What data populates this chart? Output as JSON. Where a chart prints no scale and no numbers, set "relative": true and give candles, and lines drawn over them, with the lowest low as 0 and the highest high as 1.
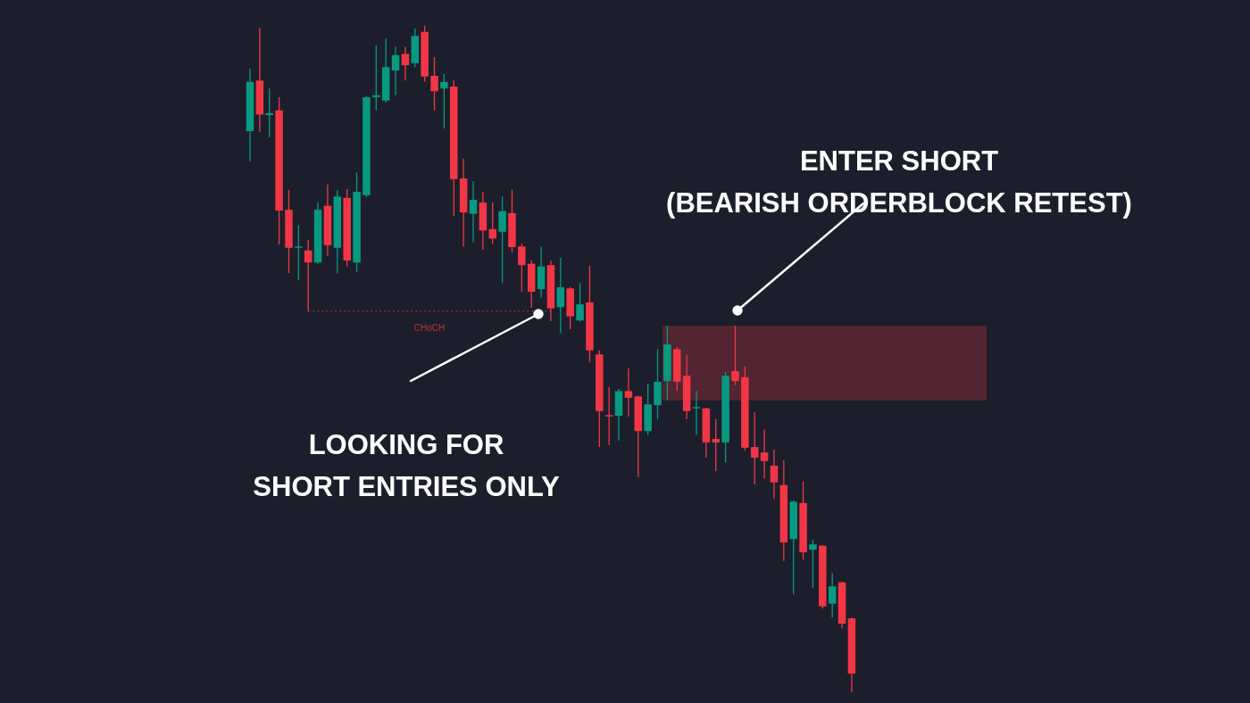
{
  "chart_data": {
    "type": "candlestick",
    "relative": true,
    "tick_labels": false,
    "categories": [
      null,
      null,
      null,
      null,
      null,
      null,
      null,
      null,
      null,
      null,
      null,
      null,
      null,
      null,
      null,
      null,
      null,
      null,
      null,
      null,
      null,
      null,
      null,
      null,
      null,
      null,
      null,
      null,
      null,
      null,
      null,
      null,
      null,
      null,
      null,
      null,
      null,
      null,
      null,
      null,
      null,
      null,
      null,
      null,
      null,
      null,
      null,
      null,
      null,
      null,
      null,
      null,
      null,
      null,
      null,
      null,
      null,
      null,
      null,
      null,
      null,
      null,
      null
    ],
    "ohlc": [
      [
        0.842,
        0.936,
        0.797,
        0.916
      ],
      [
        0.918,
        0.997,
        0.841,
        0.867
      ],
      [
        0.866,
        0.906,
        0.833,
        0.869
      ],
      [
        0.873,
        0.893,
        0.672,
        0.723
      ],
      [
        0.724,
        0.754,
        0.629,
        0.667
      ],
      [
        0.667,
        0.701,
        0.618,
        0.669
      ],
      [
        0.663,
        0.679,
        0.572,
        0.645
      ],
      [
        0.645,
        0.735,
        0.643,
        0.724
      ],
      [
        0.73,
        0.762,
        0.655,
        0.671
      ],
      [
        0.667,
        0.754,
        0.629,
        0.744
      ],
      [
        0.742,
        0.755,
        0.639,
        0.648
      ],
      [
        0.645,
        0.78,
        0.631,
        0.751
      ],
      [
        0.746,
        0.895,
        0.743,
        0.893
      ],
      [
        0.893,
        0.971,
        0.873,
        0.896
      ],
      [
        0.888,
        0.981,
        0.885,
        0.938
      ],
      [
        0.933,
        0.969,
        0.896,
        0.956
      ],
      [
        0.958,
        0.969,
        0.918,
        0.941
      ],
      [
        0.944,
        0.996,
        0.938,
        0.985
      ],
      [
        0.991,
        1.0,
        0.916,
        0.924
      ],
      [
        0.925,
        0.953,
        0.873,
        0.902
      ],
      [
        0.906,
        0.928,
        0.846,
        0.916
      ],
      [
        0.909,
        0.918,
        0.715,
        0.77
      ],
      [
        0.771,
        0.801,
        0.669,
        0.72
      ],
      [
        0.718,
        0.767,
        0.675,
        0.739
      ],
      [
        0.735,
        0.751,
        0.664,
        0.693
      ],
      [
        0.695,
        0.735,
        0.673,
        0.681
      ],
      [
        0.691,
        0.744,
        0.614,
        0.722
      ],
      [
        0.719,
        0.754,
        0.66,
        0.668
      ],
      [
        0.669,
        0.673,
        0.601,
        0.641
      ],
      [
        0.643,
        0.648,
        0.577,
        0.601
      ],
      [
        0.605,
        0.669,
        0.592,
        0.639
      ],
      [
        0.641,
        0.648,
        0.557,
        0.576
      ],
      [
        0.578,
        0.652,
        0.539,
        0.608
      ],
      [
        0.606,
        0.608,
        0.545,
        0.564
      ],
      [
        0.558,
        0.614,
        0.556,
        0.582
      ],
      [
        0.585,
        0.64,
        0.495,
        0.513
      ],
      [
        0.507,
        0.513,
        0.368,
        0.422
      ],
      [
        0.416,
        0.458,
        0.371,
        0.414
      ],
      [
        0.415,
        0.455,
        0.378,
        0.452
      ],
      [
        0.452,
        0.486,
        0.414,
        0.442
      ],
      [
        0.444,
        0.445,
        0.323,
        0.392
      ],
      [
        0.392,
        0.463,
        0.386,
        0.432
      ],
      [
        0.431,
        0.515,
        0.41,
        0.466
      ],
      [
        0.467,
        0.55,
        0.438,
        0.522
      ],
      [
        0.515,
        0.518,
        0.452,
        0.466
      ],
      [
        0.475,
        0.506,
        0.41,
        0.422
      ],
      [
        0.426,
        0.452,
        0.386,
        0.428
      ],
      [
        0.426,
        0.427,
        0.352,
        0.375
      ],
      [
        0.38,
        0.41,
        0.332,
        0.375
      ],
      [
        0.375,
        0.481,
        0.345,
        0.475
      ],
      [
        0.482,
        0.55,
        0.461,
        0.467
      ],
      [
        0.473,
        0.489,
        0.363,
        0.367
      ],
      [
        0.368,
        0.42,
        0.312,
        0.352
      ],
      [
        0.36,
        0.394,
        0.321,
        0.347
      ],
      [
        0.34,
        0.364,
        0.29,
        0.315
      ],
      [
        0.311,
        0.348,
        0.197,
        0.225
      ],
      [
        0.23,
        0.288,
        0.147,
        0.286
      ],
      [
        0.284,
        0.316,
        0.199,
        0.21
      ],
      [
        0.214,
        0.229,
        0.157,
        0.222
      ],
      [
        0.22,
        0.221,
        0.126,
        0.129
      ],
      [
        0.133,
        0.179,
        0.112,
        0.159
      ],
      [
        0.165,
        0.166,
        0.096,
        0.103
      ],
      [
        0.111,
        0.112,
        0.0,
        0.028
      ]
    ],
    "colors": [
      "#089981",
      "#f23645",
      "#089981",
      "#f23645",
      "#f23645",
      "#089981",
      "#f23645",
      "#089981",
      "#f23645",
      "#089981",
      "#f23645",
      "#089981",
      "#089981",
      "#089981",
      "#089981",
      "#089981",
      "#f23645",
      "#089981",
      "#f23645",
      "#f23645",
      "#089981",
      "#f23645",
      "#f23645",
      "#089981",
      "#f23645",
      "#f23645",
      "#089981",
      "#f23645",
      "#f23645",
      "#f23645",
      "#089981",
      "#f23645",
      "#089981",
      "#f23645",
      "#089981",
      "#f23645",
      "#f23645",
      "#f23645",
      "#089981",
      "#f23645",
      "#f23645",
      "#089981",
      "#089981",
      "#089981",
      "#f23645",
      "#f23645",
      "#089981",
      "#f23645",
      "#f23645",
      "#089981",
      "#f23645",
      "#f23645",
      "#f23645",
      "#f23645",
      "#f23645",
      "#f23645",
      "#089981",
      "#f23645",
      "#089981",
      "#f23645",
      "#089981",
      "#f23645",
      "#f23645"
    ],
    "bands": [
      {
        "axis": "y",
        "from": 0.438,
        "to": 0.55,
        "color": "#532431"
      }
    ],
    "ref_lines": [
      {
        "axis": "y",
        "value": 0.572,
        "label": "CHoCH",
        "color": "#b8333f",
        "line_style": "dotted"
      }
    ],
    "annotations": [
      "ENTER SHORT\n(BEARISH ORDERBLOCK RETEST)",
      "LOOKING FOR\nSHORT ENTRIES ONLY"
    ]
  }
}
